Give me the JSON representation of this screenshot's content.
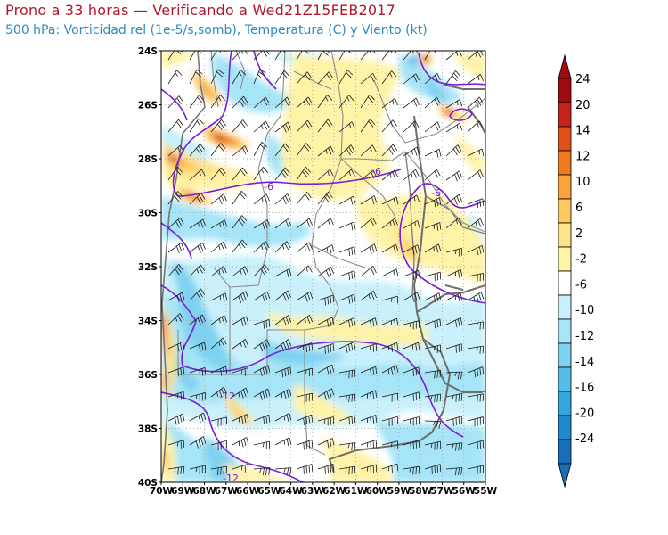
{
  "header": {
    "title": "Prono a 33 horas — Verificando a Wed21Z15FEB2017",
    "subtitle": "500 hPa: Vorticidad rel (1e-5/s,somb), Temperatura (C) y Viento (kt)"
  },
  "map": {
    "region": "Argentina center / Uruguay / Southern Brazil",
    "lat_labels": [
      "24S",
      "26S",
      "28S",
      "30S",
      "32S",
      "34S",
      "36S",
      "38S",
      "40S"
    ],
    "lon_labels": [
      "70W",
      "69W",
      "68W",
      "67W",
      "66W",
      "65W",
      "64W",
      "63W",
      "62W",
      "61W",
      "60W",
      "59W",
      "58W",
      "57W",
      "56W",
      "55W"
    ],
    "temperature_contour_labels": [
      "-6",
      "-6",
      "-6",
      "-12",
      "-12"
    ],
    "colors": {
      "contour": "#7a1fd1",
      "borders": "#8c8c8c",
      "coast": "#6e6e6e",
      "positive": [
        "#fff3a8",
        "#fde38a",
        "#fdc861",
        "#f9a13a",
        "#f07a22",
        "#e2501a",
        "#c4241a",
        "#9e0b10"
      ],
      "negative": [
        "#c7f0fb",
        "#a6e4f7",
        "#7fd1f1",
        "#56bde9",
        "#37a5dd",
        "#2289cc",
        "#186fb7"
      ]
    }
  },
  "colorbar": {
    "labels": [
      "24",
      "20",
      "14",
      "12",
      "10",
      "6",
      "2",
      "-2",
      "-6",
      "-10",
      "-12",
      "-14",
      "-16",
      "-20",
      "-24"
    ],
    "colors": [
      "#9e0b10",
      "#c4241a",
      "#e2501a",
      "#f07a22",
      "#f9a13a",
      "#fdc861",
      "#fde38a",
      "#fff3a8",
      "#ffffff",
      "#c7f0fb",
      "#a6e4f7",
      "#7fd1f1",
      "#56bde9",
      "#37a5dd",
      "#2289cc",
      "#186fb7"
    ]
  }
}
